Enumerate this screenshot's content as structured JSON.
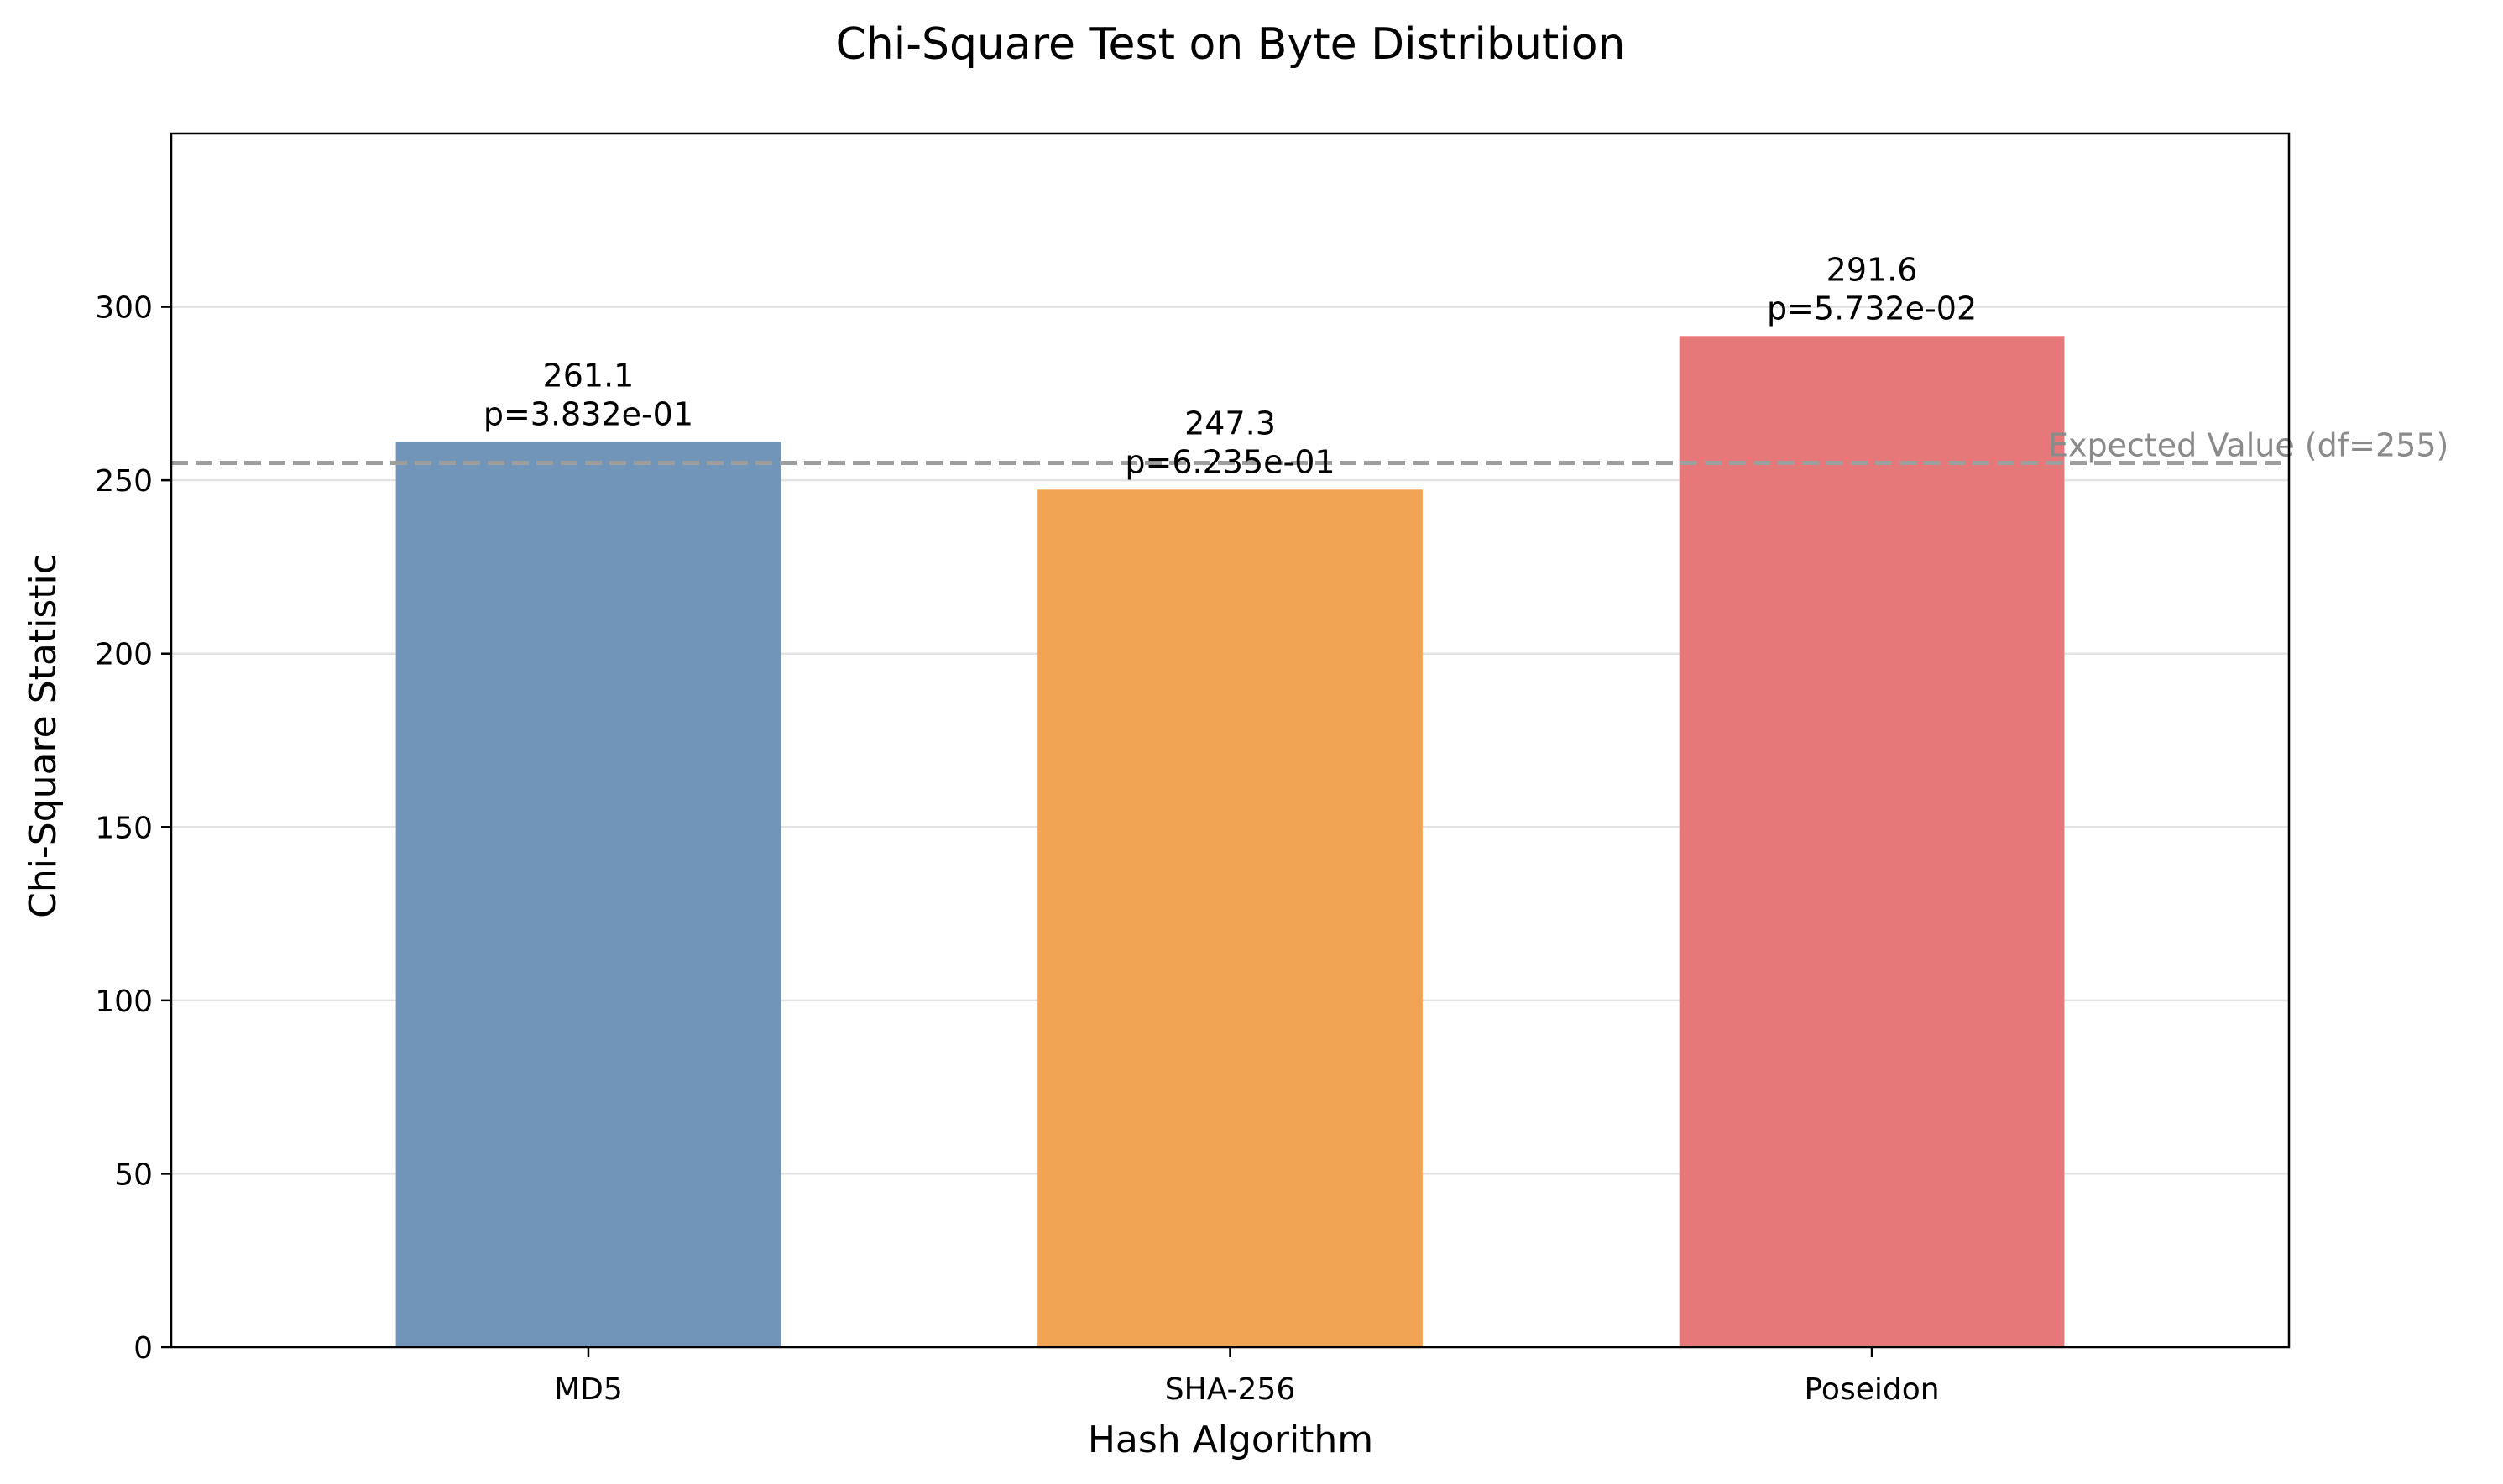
{
  "chart_data": {
    "type": "bar",
    "title": "Chi-Square Test on Byte Distribution",
    "xlabel": "Hash Algorithm",
    "ylabel": "Chi-Square Statistic",
    "categories": [
      "MD5",
      "SHA-256",
      "Poseidon"
    ],
    "values": [
      261.1,
      247.3,
      291.6
    ],
    "value_labels": [
      "261.1",
      "247.3",
      "291.6"
    ],
    "p_labels": [
      "p=3.832e-01",
      "p=6.235e-01",
      "p=5.732e-02"
    ],
    "colors": [
      "#7194b9",
      "#f2a455",
      "#e77879"
    ],
    "ylim": [
      0,
      350
    ],
    "yticks": [
      0,
      50,
      100,
      150,
      200,
      250,
      300
    ],
    "grid": "horizontal",
    "reference_line": {
      "value": 255,
      "label": "Expected Value (df=255)",
      "style": "dashed",
      "color": "#9e9e9e"
    }
  }
}
